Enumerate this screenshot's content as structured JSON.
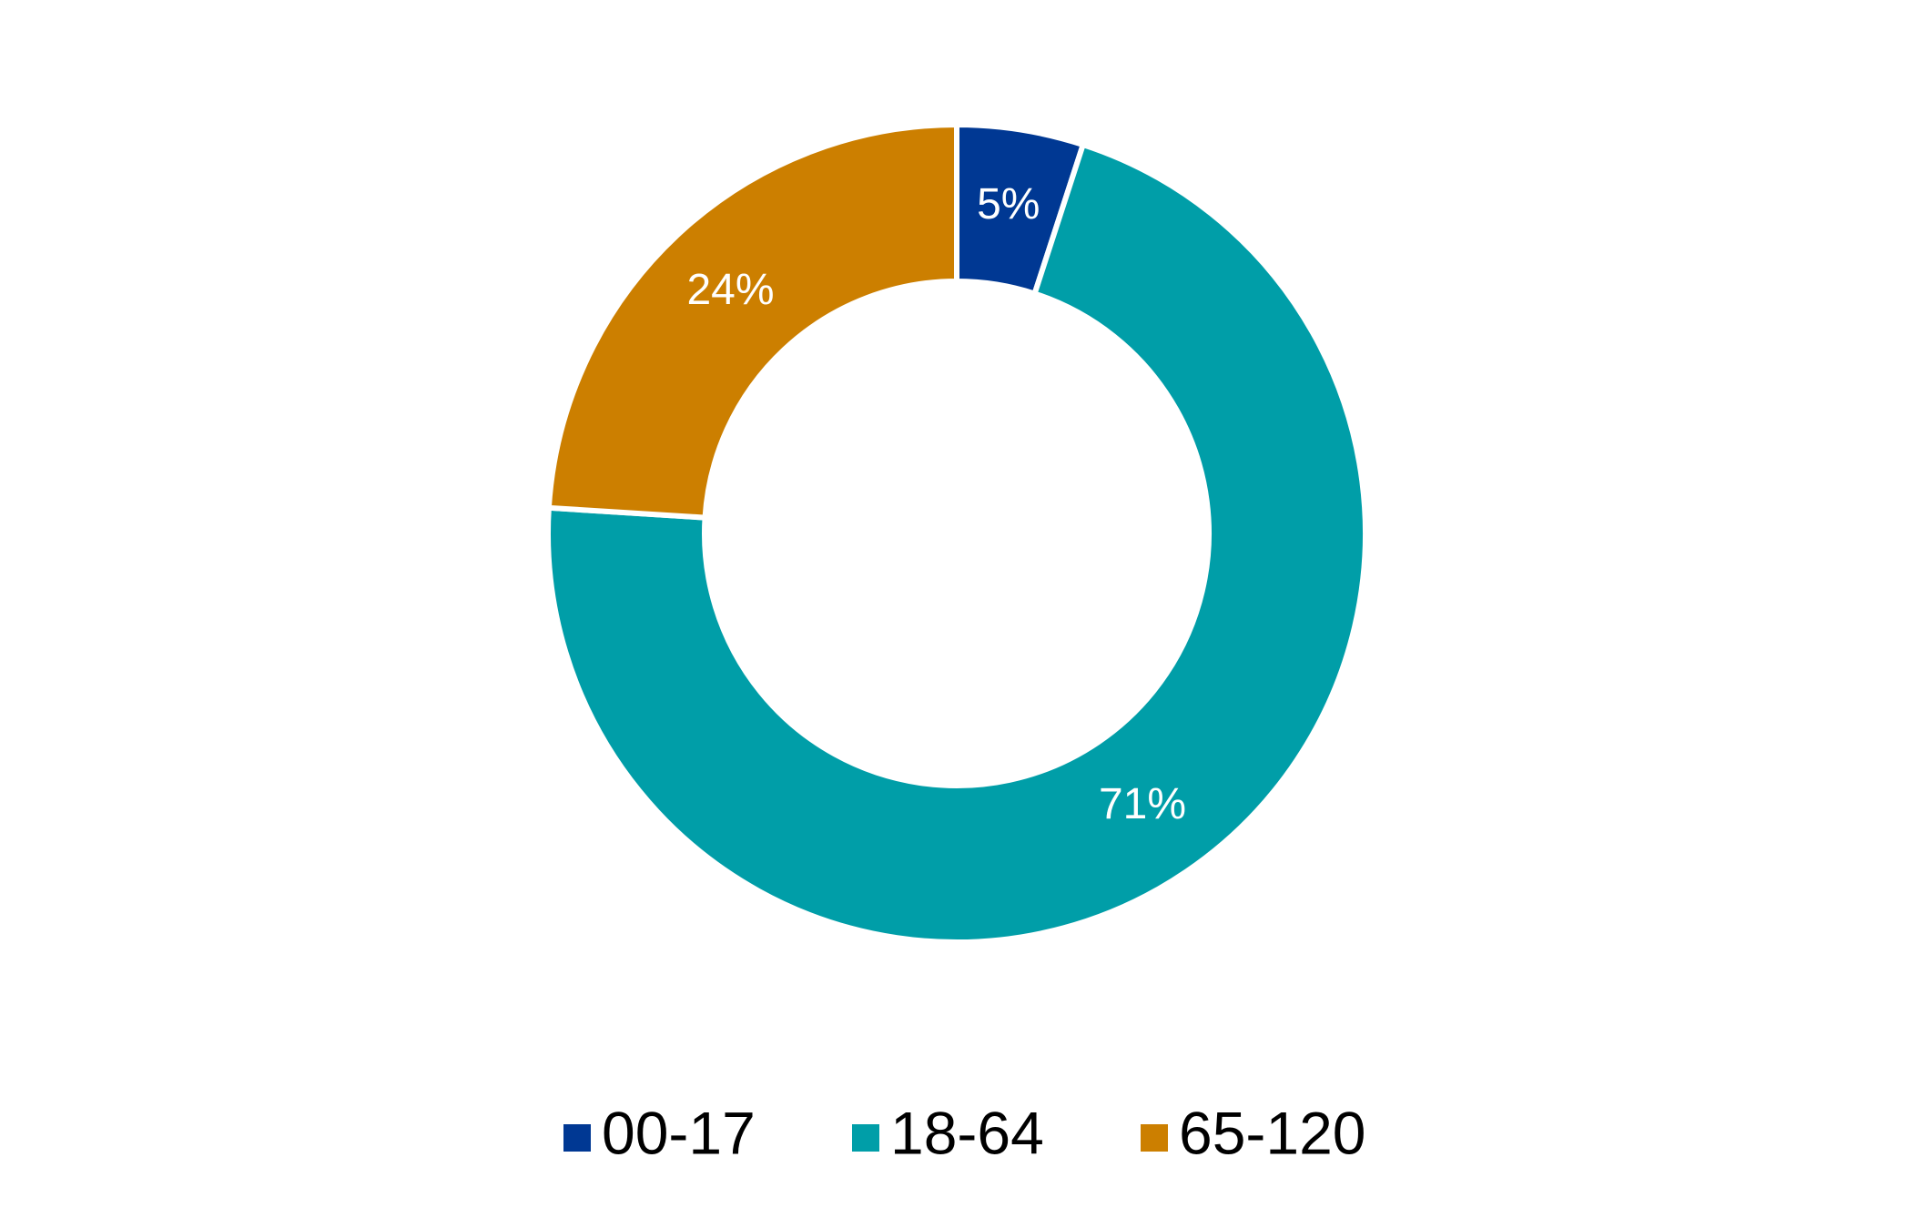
{
  "chart_data": {
    "type": "donut",
    "categories": [
      "00-17",
      "18-64",
      "65-120"
    ],
    "values": [
      5,
      71,
      24
    ],
    "value_labels": [
      "5%",
      "71%",
      "24%"
    ],
    "colors": [
      "#003893",
      "#009ea8",
      "#cc7f00"
    ],
    "legend": "bottom"
  }
}
